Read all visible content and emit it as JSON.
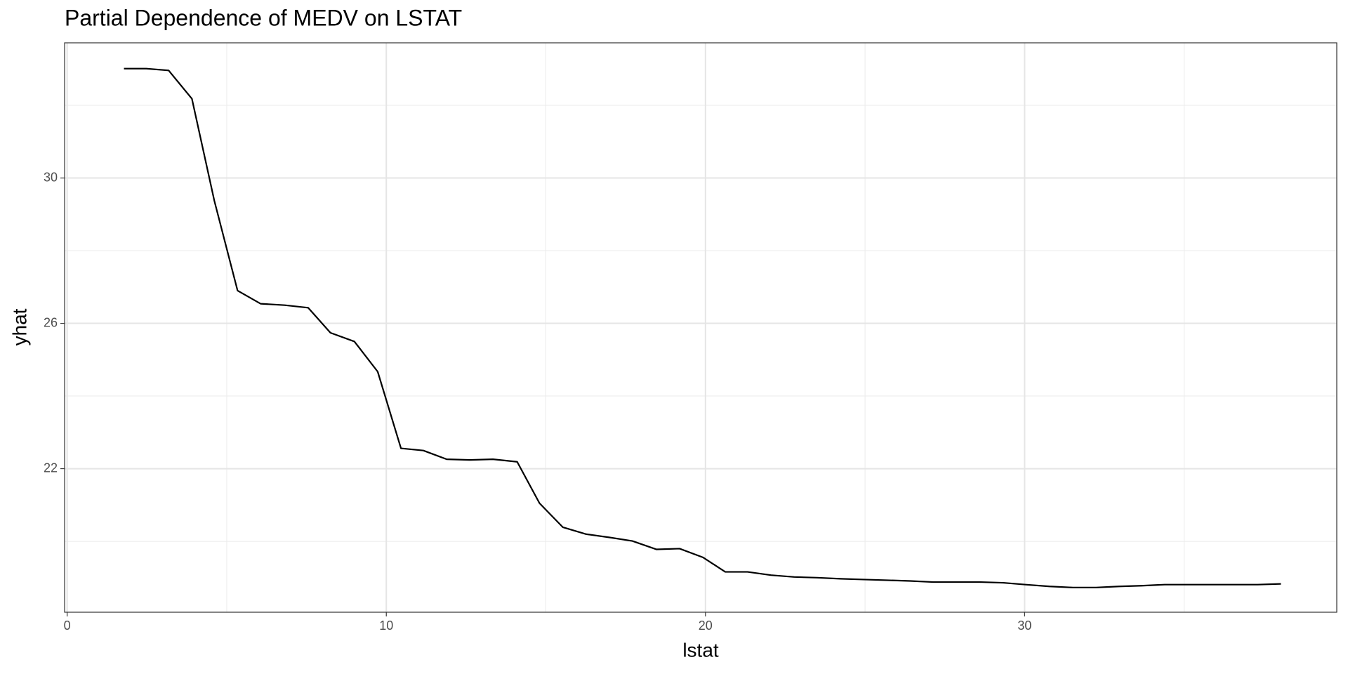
{
  "chart_data": {
    "type": "line",
    "title": "Partial Dependence of MEDV on LSTAT",
    "x_label": "lstat",
    "y_label": "yhat",
    "color": "#000000",
    "grid": true,
    "x": [
      1.78,
      2.48,
      3.18,
      3.91,
      4.61,
      5.34,
      6.06,
      6.82,
      7.55,
      8.25,
      9.0,
      9.73,
      10.46,
      11.16,
      11.89,
      12.62,
      13.34,
      14.1,
      14.8,
      15.53,
      16.25,
      16.98,
      17.71,
      18.46,
      19.19,
      19.92,
      20.62,
      21.32,
      22.05,
      22.78,
      23.5,
      24.23,
      24.96,
      25.69,
      26.42,
      27.14,
      27.87,
      28.6,
      29.33,
      30.03,
      30.78,
      31.51,
      32.24,
      32.96,
      33.67,
      34.39,
      35.12,
      35.85,
      36.58,
      37.3,
      38.03
    ],
    "values": [
      33.01,
      33.01,
      32.96,
      32.18,
      29.38,
      26.9,
      26.54,
      26.5,
      26.43,
      25.74,
      25.5,
      24.67,
      22.56,
      22.5,
      22.26,
      22.24,
      22.26,
      22.19,
      21.05,
      20.39,
      20.2,
      20.11,
      20.01,
      19.78,
      19.8,
      19.56,
      19.16,
      19.16,
      19.07,
      19.02,
      19.0,
      18.97,
      18.95,
      18.93,
      18.91,
      18.88,
      18.88,
      18.88,
      18.86,
      18.81,
      18.76,
      18.73,
      18.73,
      18.76,
      18.78,
      18.81,
      18.81,
      18.81,
      18.81,
      18.81,
      18.83
    ],
    "xlim": [
      -0.08,
      39.78
    ],
    "xticks": [
      0,
      10,
      20,
      30
    ],
    "ylim": [
      18.05,
      33.72
    ],
    "yticks": [
      22,
      26,
      30
    ]
  }
}
